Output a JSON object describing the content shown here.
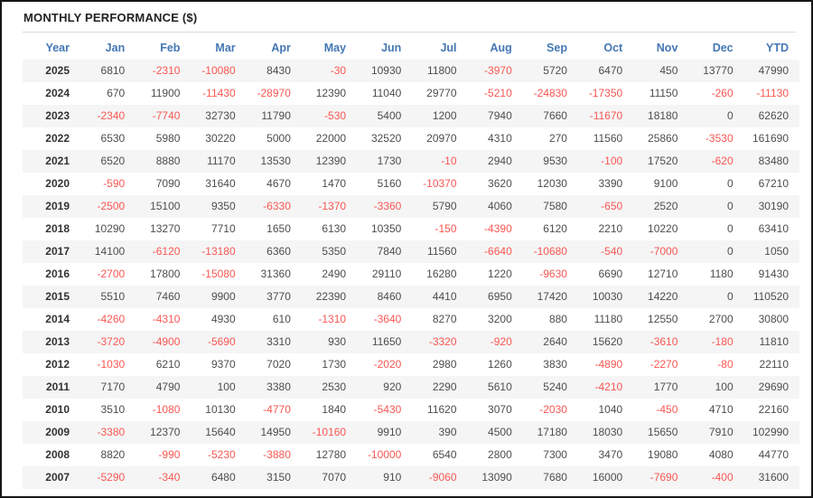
{
  "title": "MONTHLY PERFORMANCE ($)",
  "colors": {
    "header_text": "#4477b4",
    "negative_value": "#f95752",
    "positive_value": "#4d4d4d",
    "year_text": "#333333",
    "title_text": "#222222",
    "row_stripe": "#f5f5f5",
    "title_divider": "#dcdcdc",
    "frame_border": "#161616"
  },
  "chart_data": {
    "type": "table",
    "title": "MONTHLY PERFORMANCE ($)",
    "columns": [
      "Year",
      "Jan",
      "Feb",
      "Mar",
      "Apr",
      "May",
      "Jun",
      "Jul",
      "Aug",
      "Sep",
      "Oct",
      "Nov",
      "Dec",
      "YTD"
    ],
    "rows": [
      {
        "year": "2025",
        "values": [
          6810,
          -2310,
          -10080,
          8430,
          -30,
          10930,
          11800,
          -3970,
          5720,
          6470,
          450,
          13770,
          47990
        ]
      },
      {
        "year": "2024",
        "values": [
          670,
          11900,
          -11430,
          -28970,
          12390,
          11040,
          29770,
          -5210,
          -24830,
          -17350,
          11150,
          -260,
          -11130
        ]
      },
      {
        "year": "2023",
        "values": [
          -2340,
          -7740,
          32730,
          11790,
          -530,
          5400,
          1200,
          7940,
          7660,
          -11670,
          18180,
          0,
          62620
        ]
      },
      {
        "year": "2022",
        "values": [
          6530,
          5980,
          30220,
          5000,
          22000,
          32520,
          20970,
          4310,
          270,
          11560,
          25860,
          -3530,
          161690
        ]
      },
      {
        "year": "2021",
        "values": [
          6520,
          8880,
          11170,
          13530,
          12390,
          1730,
          -10,
          2940,
          9530,
          -100,
          17520,
          -620,
          83480
        ]
      },
      {
        "year": "2020",
        "values": [
          -590,
          7090,
          31640,
          4670,
          1470,
          5160,
          -10370,
          3620,
          12030,
          3390,
          9100,
          0,
          67210
        ]
      },
      {
        "year": "2019",
        "values": [
          -2500,
          15100,
          9350,
          -6330,
          -1370,
          -3360,
          5790,
          4060,
          7580,
          -650,
          2520,
          0,
          30190
        ]
      },
      {
        "year": "2018",
        "values": [
          10290,
          13270,
          7710,
          1650,
          6130,
          10350,
          -150,
          -4390,
          6120,
          2210,
          10220,
          0,
          63410
        ]
      },
      {
        "year": "2017",
        "values": [
          14100,
          -6120,
          -13180,
          6360,
          5350,
          7840,
          11560,
          -6640,
          -10680,
          -540,
          -7000,
          0,
          1050
        ]
      },
      {
        "year": "2016",
        "values": [
          -2700,
          17800,
          -15080,
          31360,
          2490,
          29110,
          16280,
          1220,
          -9630,
          6690,
          12710,
          1180,
          91430
        ]
      },
      {
        "year": "2015",
        "values": [
          5510,
          7460,
          9900,
          3770,
          22390,
          8460,
          4410,
          6950,
          17420,
          10030,
          14220,
          0,
          110520
        ]
      },
      {
        "year": "2014",
        "values": [
          -4260,
          -4310,
          4930,
          610,
          -1310,
          -3640,
          8270,
          3200,
          880,
          11180,
          12550,
          2700,
          30800
        ]
      },
      {
        "year": "2013",
        "values": [
          -3720,
          -4900,
          -5690,
          3310,
          930,
          11650,
          -3320,
          -920,
          2640,
          15620,
          -3610,
          -180,
          11810
        ]
      },
      {
        "year": "2012",
        "values": [
          -1030,
          6210,
          9370,
          7020,
          1730,
          -2020,
          2980,
          1260,
          3830,
          -4890,
          -2270,
          -80,
          22110
        ]
      },
      {
        "year": "2011",
        "values": [
          7170,
          4790,
          100,
          3380,
          2530,
          920,
          2290,
          5610,
          5240,
          -4210,
          1770,
          100,
          29690
        ]
      },
      {
        "year": "2010",
        "values": [
          3510,
          -1080,
          10130,
          -4770,
          1840,
          -5430,
          11620,
          3070,
          -2030,
          1040,
          -450,
          4710,
          22160
        ]
      },
      {
        "year": "2009",
        "values": [
          -3380,
          12370,
          15640,
          14950,
          -10160,
          9910,
          390,
          4500,
          17180,
          18030,
          15650,
          7910,
          102990
        ]
      },
      {
        "year": "2008",
        "values": [
          8820,
          -990,
          -5230,
          -3880,
          12780,
          -10000,
          6540,
          2800,
          7300,
          3470,
          19080,
          4080,
          44770
        ]
      },
      {
        "year": "2007",
        "values": [
          -5290,
          -340,
          6480,
          3150,
          7070,
          910,
          -9060,
          13090,
          7680,
          16000,
          -7690,
          -400,
          31600
        ]
      }
    ]
  }
}
